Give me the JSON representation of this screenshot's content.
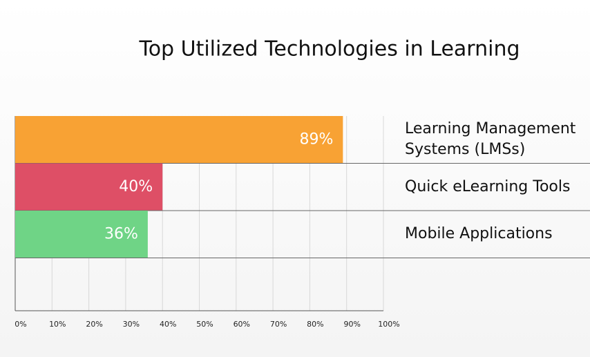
{
  "chart_data": {
    "type": "hbar",
    "title": "Top Utilized Technologies in Learning",
    "categories": [
      "Learning Management Systems (LMSs)",
      "Quick eLearning Tools",
      "Mobile Applications"
    ],
    "values": [
      89,
      40,
      36
    ],
    "value_labels": [
      "89%",
      "40%",
      "36%"
    ],
    "colors": [
      "#f8a234",
      "#de4f66",
      "#6fd486"
    ],
    "xlim": [
      0,
      100
    ],
    "xticks": [
      {
        "value": 0,
        "label": "0%"
      },
      {
        "value": 10,
        "label": "10%"
      },
      {
        "value": 20,
        "label": "20%"
      },
      {
        "value": 30,
        "label": "30%"
      },
      {
        "value": 40,
        "label": "40%"
      },
      {
        "value": 50,
        "label": "50%"
      },
      {
        "value": 60,
        "label": "60%"
      },
      {
        "value": 70,
        "label": "70%"
      },
      {
        "value": 80,
        "label": "80%"
      },
      {
        "value": 90,
        "label": "90%"
      },
      {
        "value": 100,
        "label": "100%"
      }
    ],
    "grid": true
  }
}
